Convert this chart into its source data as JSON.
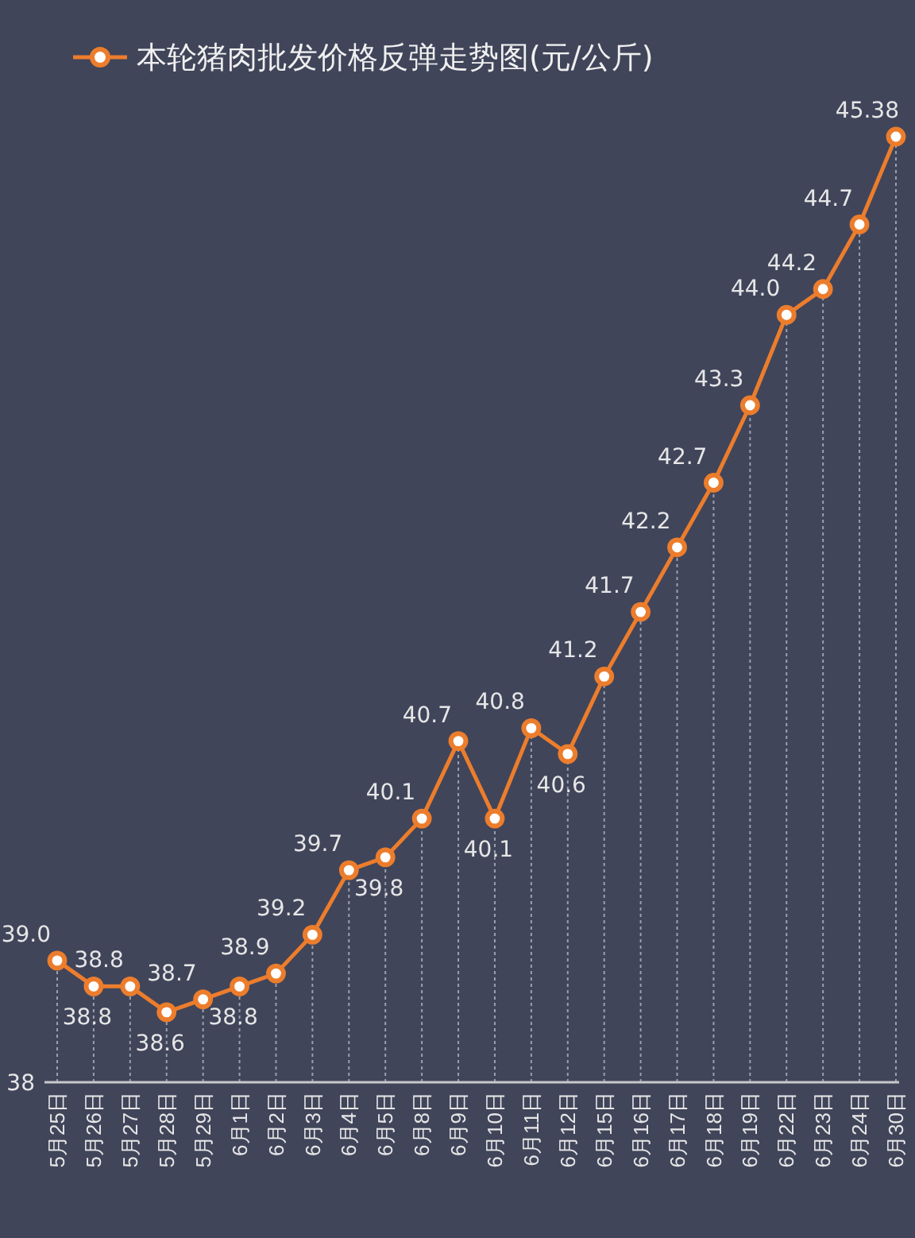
{
  "chart_data": {
    "type": "line",
    "categories": [
      "5月25日",
      "5月26日",
      "5月27日",
      "5月28日",
      "5月29日",
      "6月1日",
      "6月2日",
      "6月3日",
      "6月4日",
      "6月5日",
      "6月8日",
      "6月9日",
      "6月10日",
      "6月11日",
      "6月12日",
      "6月15日",
      "6月16日",
      "6月17日",
      "6月18日",
      "6月19日",
      "6月22日",
      "6月23日",
      "6月24日",
      "6月30日"
    ],
    "series": [
      {
        "name": "本轮猪肉批发价格反弹走势图(元/公斤)",
        "color": "#ec7d2c",
        "values": [
          39.0,
          38.8,
          38.8,
          38.6,
          38.7,
          38.8,
          38.9,
          39.2,
          39.7,
          39.8,
          40.1,
          40.7,
          40.1,
          40.8,
          40.6,
          41.2,
          41.7,
          42.2,
          42.7,
          43.3,
          44.0,
          44.2,
          44.7,
          45.38
        ],
        "value_labels": [
          "39.0",
          "38.8",
          "38.8",
          "38.6",
          "38.7",
          "38.8",
          "38.9",
          "39.2",
          "39.7",
          "39.8",
          "40.1",
          "40.7",
          "40.1",
          "40.8",
          "40.6",
          "41.2",
          "41.7",
          "42.2",
          "42.7",
          "43.3",
          "44.0",
          "44.2",
          "44.7",
          "45.38"
        ]
      }
    ],
    "annotations": [
      "38"
    ],
    "grid": "x",
    "legend": "top left",
    "marker": "circle",
    "line_style": "solid"
  }
}
